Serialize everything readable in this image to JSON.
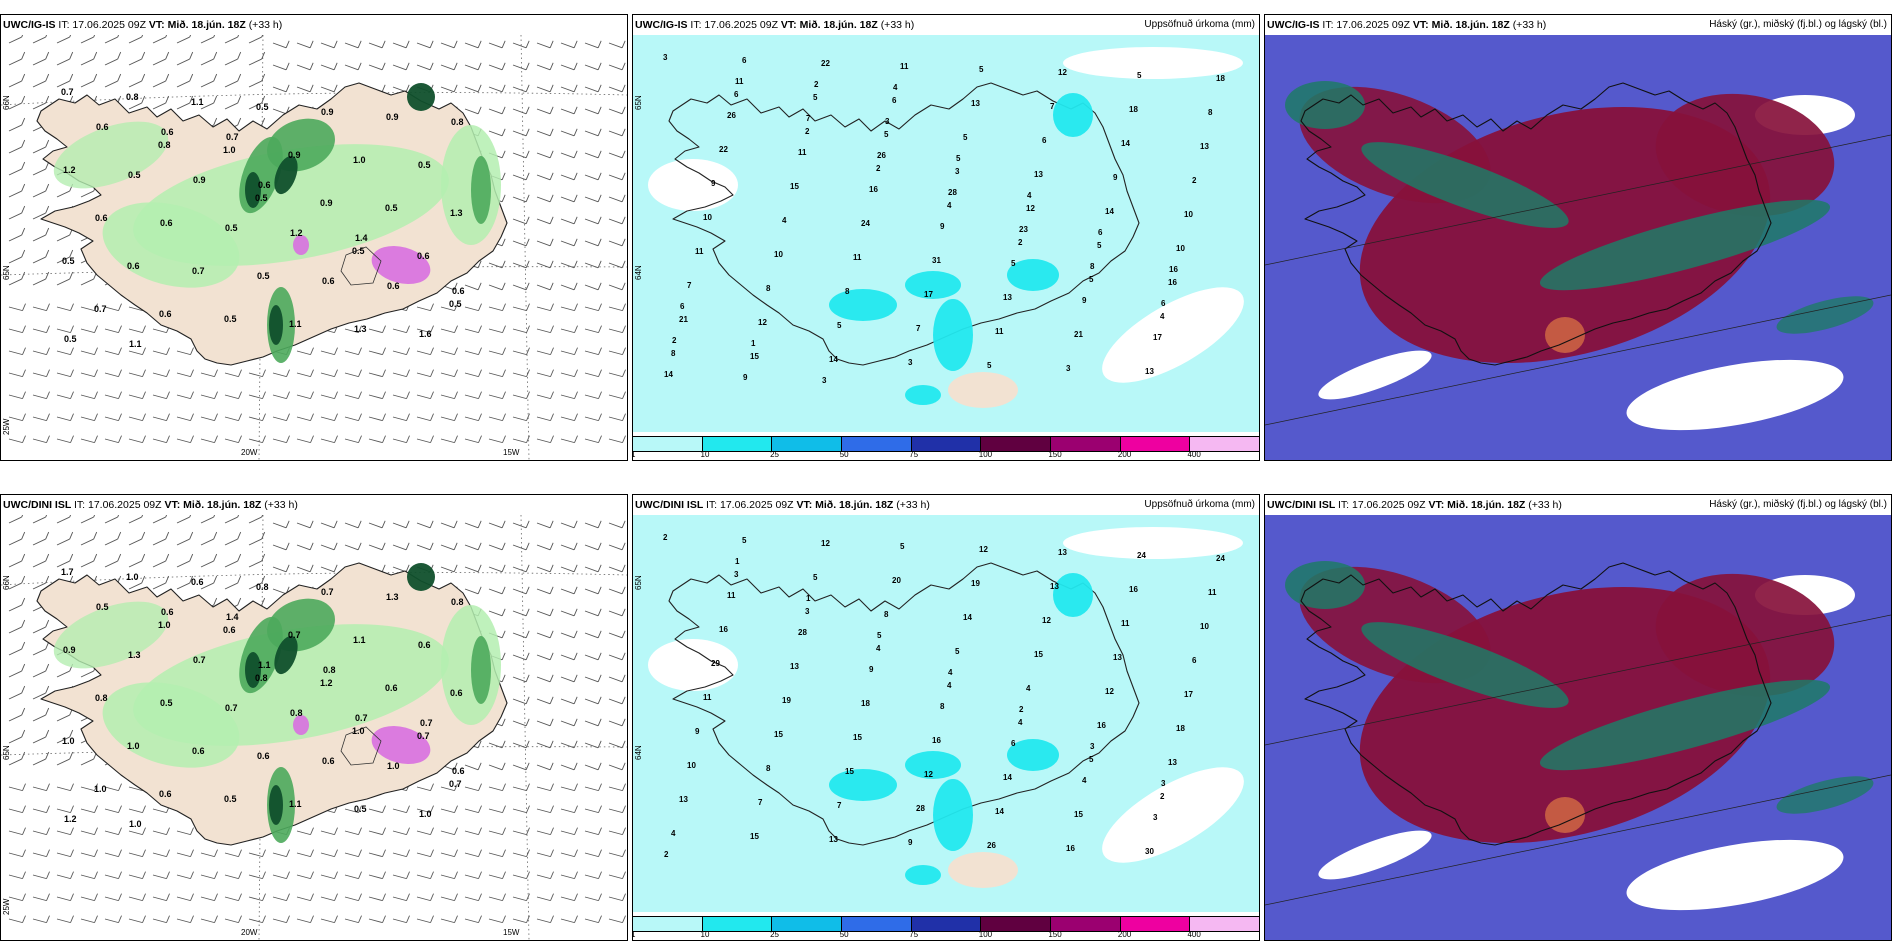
{
  "panels": [
    {
      "model": "UWC/IG-IS",
      "init": "IT: 17.06.2025 09Z",
      "vt_label": "VT:",
      "vt": "Mið. 18.jún. 18Z",
      "lead": "(+33 h)",
      "right": "",
      "kind": "wind",
      "numbers": [
        "0.7",
        "0.8",
        "0.5",
        "0.5",
        "0.5",
        "0.8",
        "1.0",
        "0.9",
        "0.6",
        "0.7",
        "1.1",
        "0.9",
        "0.5",
        "0.5",
        "0.6",
        "0.5",
        "1.0",
        "1.3",
        "0.6",
        "0.5",
        "0.9",
        "0.5",
        "0.6",
        "0.7",
        "1.1",
        "0.9",
        "1.2",
        "0.6",
        "0.5",
        "1.3",
        "0.8",
        "0.5",
        "0.5",
        "0.6",
        "1.6",
        "0.6",
        "0.9",
        "1.2",
        "0.6",
        "0.5",
        "0.6",
        "0.6",
        "1.4",
        "0.6",
        "1.1",
        "0.7"
      ],
      "lon_labels": [
        "20W",
        "15W"
      ],
      "lat_labels": [
        "66N",
        "65N",
        "25W"
      ]
    },
    {
      "model": "UWC/IG-IS",
      "init": "IT: 17.06.2025 09Z",
      "vt_label": "VT:",
      "vt": "Mið. 18.jún. 18Z",
      "lead": "(+33 h)",
      "right": "Uppsöfnuð úrkoma (mm)",
      "kind": "precip",
      "numbers": [
        "3",
        "6",
        "2",
        "2",
        "4",
        "2",
        "5",
        "4",
        "8",
        "6",
        "5",
        "5",
        "3",
        "12",
        "5",
        "16",
        "21",
        "15",
        "22",
        "6",
        "5",
        "13",
        "14",
        "10",
        "7",
        "12",
        "14",
        "11",
        "13",
        "6",
        "9",
        "10",
        "11",
        "8",
        "5",
        "3",
        "5",
        "7",
        "14",
        "2",
        "10",
        "10",
        "8",
        "7",
        "5",
        "12",
        "18",
        "13",
        "9",
        "4",
        "11",
        "17",
        "11",
        "3",
        "5",
        "8",
        "22",
        "15",
        "24",
        "31",
        "13",
        "21",
        "13",
        "18",
        "26",
        "11",
        "16",
        "9",
        "5",
        "9",
        "17",
        "14",
        "11",
        "7",
        "26",
        "28",
        "23",
        "8",
        "6",
        "2",
        "9",
        "2",
        "3",
        "5",
        "4",
        "6",
        "16",
        "6",
        "1",
        "3",
        "4"
      ],
      "lon_labels": [],
      "lat_labels": [
        "65N",
        "64N"
      ]
    },
    {
      "model": "UWC/IG-IS",
      "init": "IT: 17.06.2025 09Z",
      "vt_label": "VT:",
      "vt": "Mið. 18.jún. 18Z",
      "lead": "(+33 h)",
      "right": "Háský (gr.), miðský (fj.bl.) og lágský (bl.)",
      "kind": "cloud",
      "numbers": [],
      "lon_labels": [],
      "lat_labels": []
    },
    {
      "model": "UWC/DINI ISL",
      "init": "IT: 17.06.2025 09Z",
      "vt_label": "VT:",
      "vt": "Mið. 18.jún. 18Z",
      "lead": "(+33 h)",
      "right": "",
      "kind": "wind",
      "numbers": [
        "1.7",
        "1.0",
        "0.8",
        "1.0",
        "0.7",
        "1.0",
        "0.6",
        "1.2",
        "0.7",
        "1.0",
        "0.6",
        "0.7",
        "0.6",
        "1.0",
        "0.6",
        "0.8",
        "1.1",
        "0.6",
        "1.0",
        "0.5",
        "0.7",
        "0.6",
        "0.8",
        "0.6",
        "1.1",
        "1.3",
        "0.9",
        "0.5",
        "0.6",
        "0.5",
        "0.8",
        "1.3",
        "0.7",
        "0.6",
        "1.0",
        "0.5",
        "0.7",
        "0.8",
        "1.0",
        "1.2",
        "0.6",
        "1.1",
        "0.7",
        "0.6",
        "1.0",
        "1.4",
        "0.8",
        "0.7"
      ],
      "lon_labels": [
        "20W",
        "15W"
      ],
      "lat_labels": [
        "66N",
        "65N",
        "25W"
      ]
    },
    {
      "model": "UWC/DINI ISL",
      "init": "IT: 17.06.2025 09Z",
      "vt_label": "VT:",
      "vt": "Mið. 18.jún. 18Z",
      "lead": "(+33 h)",
      "right": "Uppsöfnuð úrkoma (mm)",
      "kind": "precip",
      "numbers": [
        "2",
        "3",
        "3",
        "4",
        "4",
        "4",
        "5",
        "2",
        "4",
        "5",
        "5",
        "8",
        "5",
        "4",
        "16",
        "13",
        "13",
        "15",
        "12",
        "20",
        "14",
        "15",
        "12",
        "18",
        "10",
        "7",
        "13",
        "5",
        "19",
        "12",
        "13",
        "17",
        "9",
        "8",
        "7",
        "9",
        "12",
        "13",
        "11",
        "6",
        "11",
        "15",
        "15",
        "28",
        "26",
        "13",
        "16",
        "10",
        "29",
        "19",
        "15",
        "12",
        "14",
        "16",
        "24",
        "11",
        "16",
        "13",
        "18",
        "16",
        "14",
        "15",
        "30",
        "24",
        "11",
        "28",
        "9",
        "8",
        "6",
        "4",
        "3",
        "2",
        "1",
        "1",
        "5",
        "4",
        "2",
        "3",
        "3"
      ],
      "lon_labels": [],
      "lat_labels": [
        "65N",
        "64N"
      ]
    },
    {
      "model": "UWC/DINI ISL",
      "init": "IT: 17.06.2025 09Z",
      "vt_label": "VT:",
      "vt": "Mið. 18.jún. 18Z",
      "lead": "(+33 h)",
      "right": "Háský (gr.), miðský (fj.bl.) og lágský (bl.)",
      "kind": "cloud",
      "numbers": [],
      "lon_labels": [],
      "lat_labels": []
    }
  ],
  "colorbar": {
    "ticks": [
      "1",
      "10",
      "25",
      "50",
      "75",
      "100",
      "150",
      "200",
      "400"
    ],
    "colors": [
      "#b8f8f8",
      "#22e8ee",
      "#10bde8",
      "#2f6ce8",
      "#2030a8",
      "#600040",
      "#9b0070",
      "#ee00a0",
      "#f5b8f2"
    ]
  },
  "colors": {
    "land": "#f2e2d2",
    "green_light": "#b4eeb0",
    "green_mid": "#4caa5c",
    "green_dark": "#10502c",
    "magenta": "#d870e0",
    "sea_precip": "#b8f8f8",
    "precip_mid": "#22e8ee",
    "cloud_low": "#5559cc",
    "cloud_mid": "#87113b",
    "cloud_high": "#1e7a66"
  }
}
